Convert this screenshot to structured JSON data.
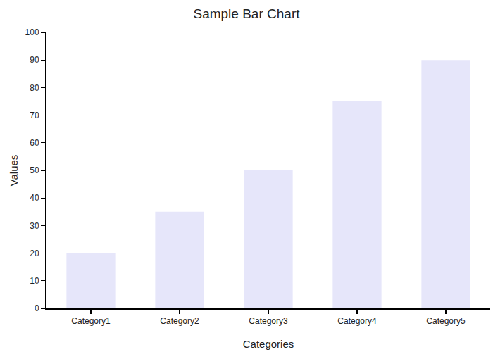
{
  "chart_data": {
    "type": "bar",
    "title": "Sample Bar Chart",
    "x_label": "Categories",
    "y_label": "Values",
    "categories": [
      "Category1",
      "Category2",
      "Category3",
      "Category4",
      "Category5"
    ],
    "values": [
      20,
      35,
      50,
      75,
      90
    ],
    "color": "#e6e6fa",
    "ylim": [
      0,
      100
    ],
    "yticks": [
      0,
      10,
      20,
      30,
      40,
      50,
      60,
      70,
      80,
      90,
      100
    ],
    "grid": false
  }
}
